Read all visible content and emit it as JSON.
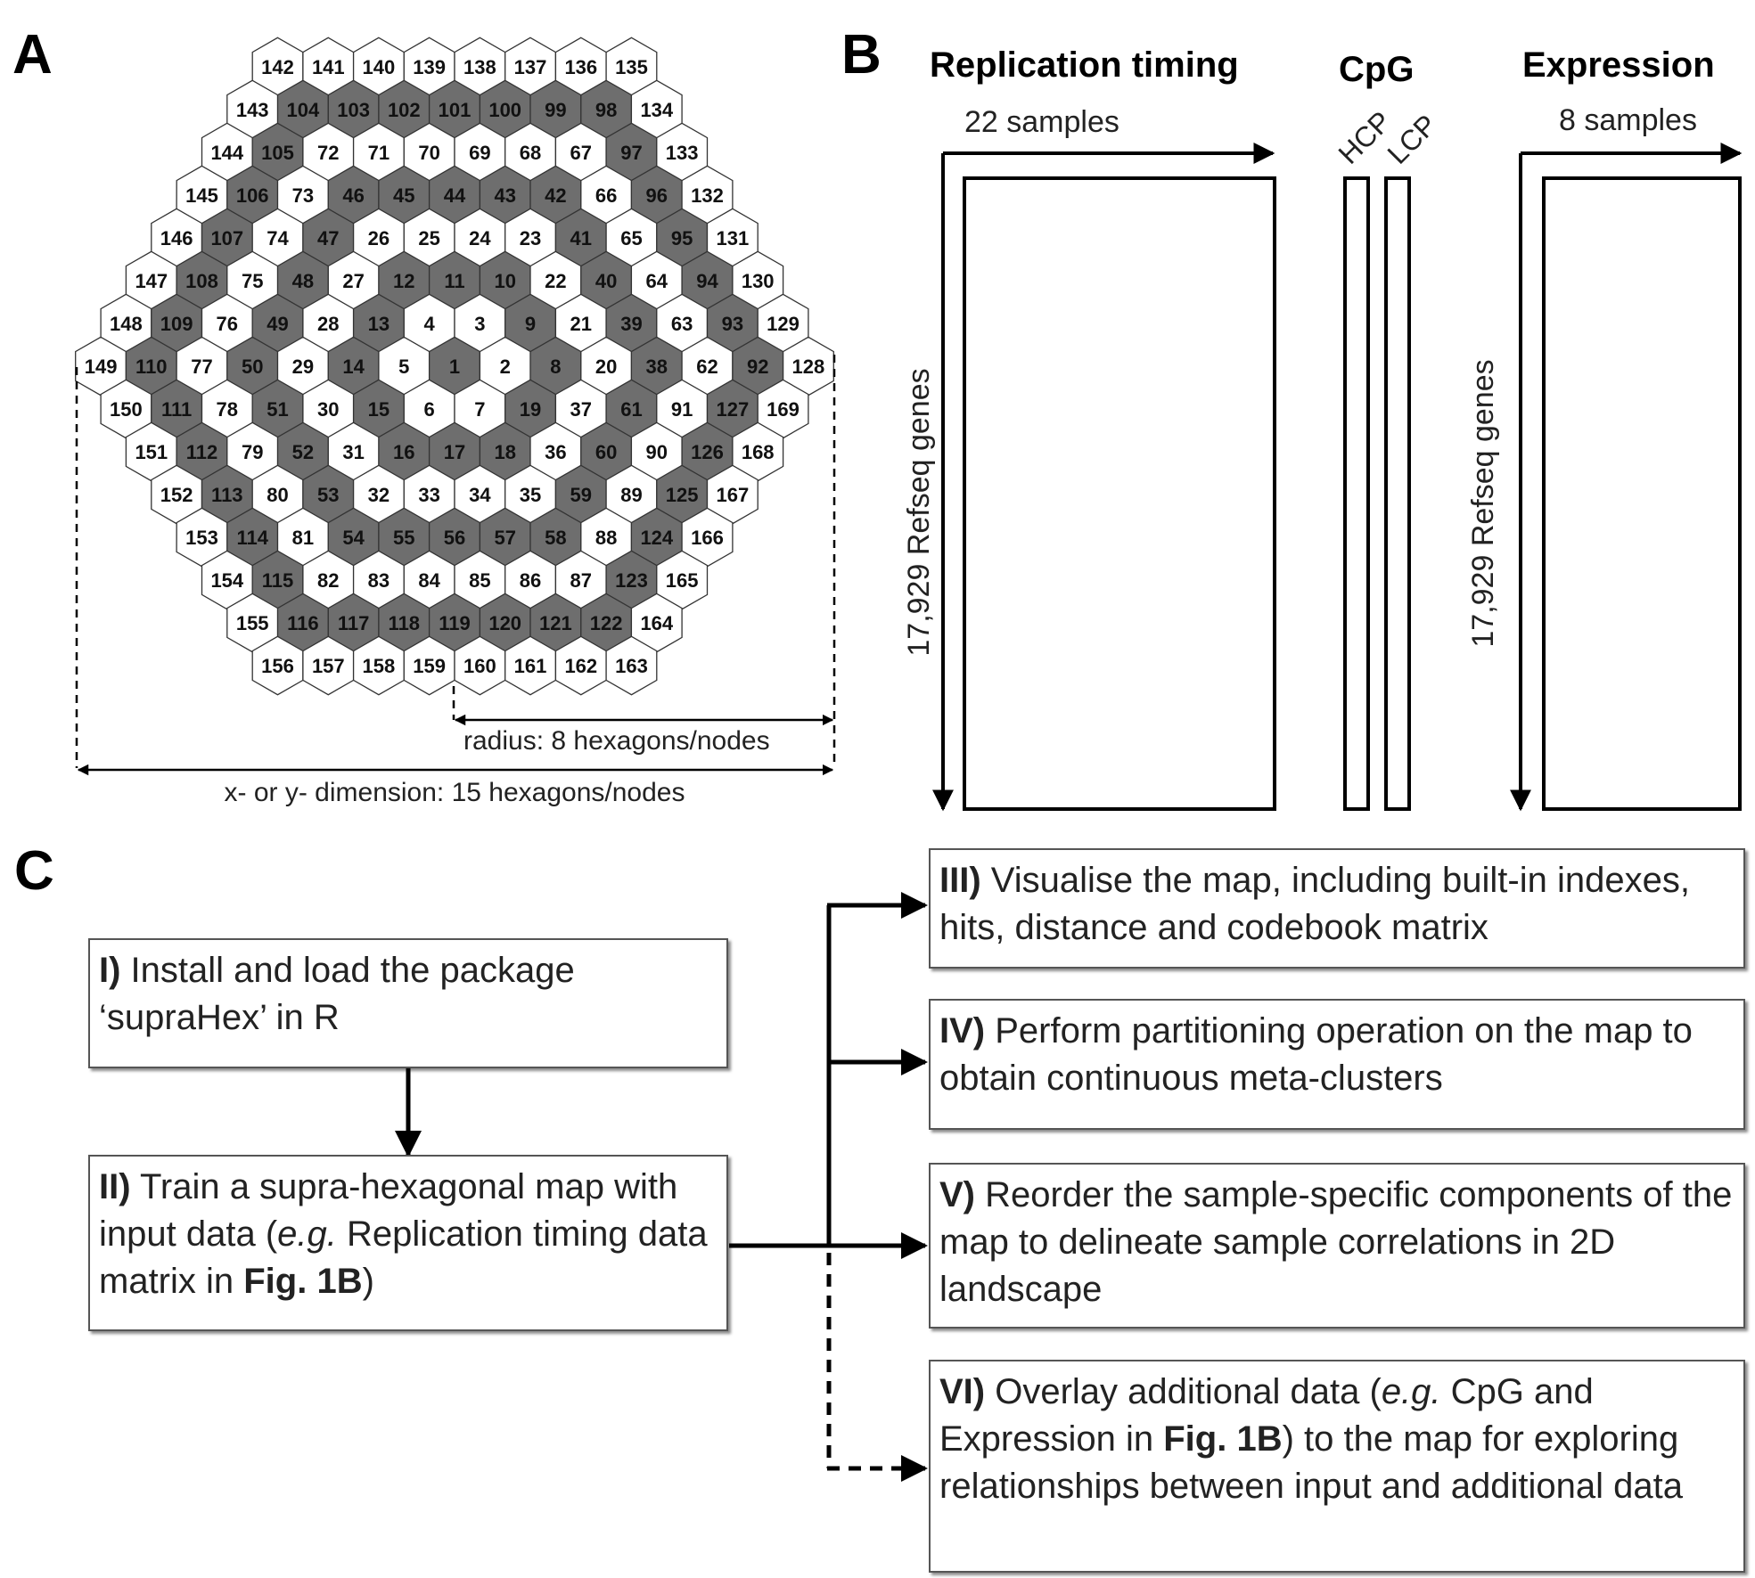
{
  "panel_a": {
    "label": "A",
    "radius_label": "radius: 8 hexagons/nodes",
    "dimension_label": "x- or y- dimension: 15 hexagons/nodes",
    "rows": [
      [
        "142",
        "141",
        "140",
        "139",
        "138",
        "137",
        "136",
        "135"
      ],
      [
        "143",
        "104",
        "103",
        "102",
        "101",
        "100",
        "99",
        "98",
        "134"
      ],
      [
        "144",
        "105",
        "72",
        "71",
        "70",
        "69",
        "68",
        "67",
        "97",
        "133"
      ],
      [
        "145",
        "106",
        "73",
        "46",
        "45",
        "44",
        "43",
        "42",
        "66",
        "96",
        "132"
      ],
      [
        "146",
        "107",
        "74",
        "47",
        "26",
        "25",
        "24",
        "23",
        "41",
        "65",
        "95",
        "131"
      ],
      [
        "147",
        "108",
        "75",
        "48",
        "27",
        "12",
        "11",
        "10",
        "22",
        "40",
        "64",
        "94",
        "130"
      ],
      [
        "148",
        "109",
        "76",
        "49",
        "28",
        "13",
        "4",
        "3",
        "9",
        "21",
        "39",
        "63",
        "93",
        "129"
      ],
      [
        "149",
        "110",
        "77",
        "50",
        "29",
        "14",
        "5",
        "1",
        "2",
        "8",
        "20",
        "38",
        "62",
        "92",
        "128"
      ],
      [
        "150",
        "111",
        "78",
        "51",
        "30",
        "15",
        "6",
        "7",
        "19",
        "37",
        "61",
        "91",
        "127",
        "169"
      ],
      [
        "151",
        "112",
        "79",
        "52",
        "31",
        "16",
        "17",
        "18",
        "36",
        "60",
        "90",
        "126",
        "168"
      ],
      [
        "152",
        "113",
        "80",
        "53",
        "32",
        "33",
        "34",
        "35",
        "59",
        "89",
        "125",
        "167"
      ],
      [
        "153",
        "114",
        "81",
        "54",
        "55",
        "56",
        "57",
        "58",
        "88",
        "124",
        "166"
      ],
      [
        "154",
        "115",
        "82",
        "83",
        "84",
        "85",
        "86",
        "87",
        "123",
        "165"
      ],
      [
        "155",
        "116",
        "117",
        "118",
        "119",
        "120",
        "121",
        "122",
        "164"
      ],
      [
        "156",
        "157",
        "158",
        "159",
        "160",
        "161",
        "162",
        "163"
      ]
    ],
    "shaded": [
      "1",
      "8",
      "9",
      "10",
      "11",
      "12",
      "13",
      "14",
      "15",
      "16",
      "17",
      "18",
      "19",
      "38",
      "39",
      "40",
      "41",
      "42",
      "43",
      "44",
      "45",
      "46",
      "47",
      "48",
      "49",
      "50",
      "51",
      "52",
      "53",
      "54",
      "55",
      "56",
      "57",
      "58",
      "59",
      "60",
      "61",
      "92",
      "93",
      "94",
      "95",
      "96",
      "97",
      "98",
      "99",
      "100",
      "101",
      "102",
      "103",
      "104",
      "105",
      "106",
      "107",
      "108",
      "109",
      "110",
      "111",
      "112",
      "113",
      "114",
      "115",
      "116",
      "117",
      "118",
      "119",
      "120",
      "121",
      "122",
      "123",
      "124",
      "125",
      "126",
      "127"
    ],
    "colors": {
      "shaded": "#6e6e6e",
      "white": "#ffffff",
      "stroke": "#333333"
    }
  },
  "panel_b": {
    "label": "B",
    "replication_title": "Replication timing",
    "replication_samples": "22 samples",
    "cpg_title": "CpG",
    "hcp_label": "HCP",
    "lcp_label": "LCP",
    "expression_title": "Expression",
    "expression_samples": "8 samples",
    "genes_label": "17,929 Refseq genes"
  },
  "panel_c": {
    "label": "C",
    "step1": {
      "num": "I)",
      "text": " Install and load the package ‘supraHex’ in R"
    },
    "step2": {
      "num": "II)",
      "text_a": " Train a supra-hexagonal map with input data (",
      "eg": "e.g.",
      "text_b": " Replication timing data matrix in ",
      "fig": "Fig. 1B",
      "text_c": ")"
    },
    "step3": {
      "num": "III)",
      "text": " Visualise the map, including built-in indexes, hits, distance and codebook matrix"
    },
    "step4": {
      "num": "IV)",
      "text": " Perform partitioning operation on the map to obtain continuous meta-clusters"
    },
    "step5": {
      "num": "V)",
      "text": " Reorder the sample-specific components of the map to delineate sample correlations in 2D landscape"
    },
    "step6": {
      "num": "VI)",
      "text_a": " Overlay additional data (",
      "eg": "e.g.",
      "text_b": " CpG and Expression in ",
      "fig": "Fig. 1B",
      "text_c": ") to the map for exploring relationships between input and additional data"
    }
  }
}
